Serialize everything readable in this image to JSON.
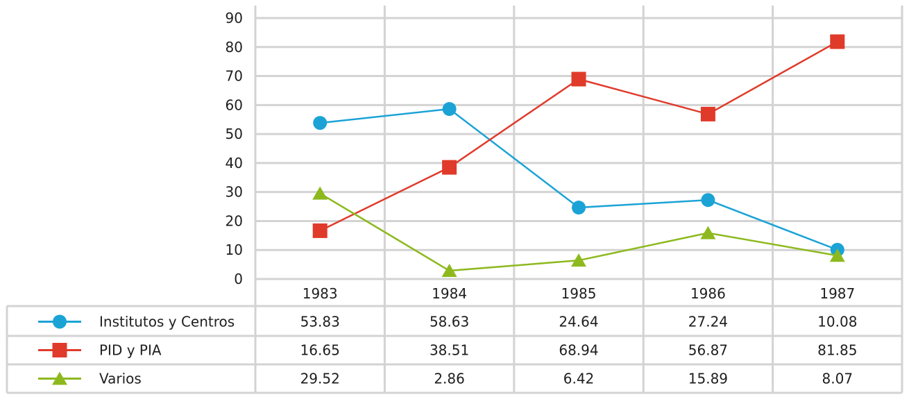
{
  "chart_data": {
    "type": "line",
    "title": "",
    "xlabel": "",
    "ylabel": "",
    "categories": [
      "1983",
      "1984",
      "1985",
      "1986",
      "1987"
    ],
    "ylim": [
      0,
      90
    ],
    "yticks": [
      0,
      10,
      20,
      30,
      40,
      50,
      60,
      70,
      80,
      90
    ],
    "grid": true,
    "legend": "data-table-below",
    "series": [
      {
        "name": "Institutos y Centros",
        "marker": "circle",
        "color": "#1ba3d6",
        "values": [
          53.83,
          58.63,
          24.64,
          27.24,
          10.08
        ],
        "labels": [
          "53.83",
          "58.63",
          "24.64",
          "27.24",
          "10.08"
        ]
      },
      {
        "name": "PID y PIA",
        "marker": "square",
        "color": "#e03a2a",
        "values": [
          16.65,
          38.51,
          68.94,
          56.87,
          81.85
        ],
        "labels": [
          "16.65",
          "38.51",
          "68.94",
          "56.87",
          "81.85"
        ]
      },
      {
        "name": "Varios",
        "marker": "triangle",
        "color": "#8db91e",
        "values": [
          29.52,
          2.86,
          6.42,
          15.89,
          8.07
        ],
        "labels": [
          "29.52",
          "2.86",
          "6.42",
          "15.89",
          "8.07"
        ]
      }
    ]
  }
}
